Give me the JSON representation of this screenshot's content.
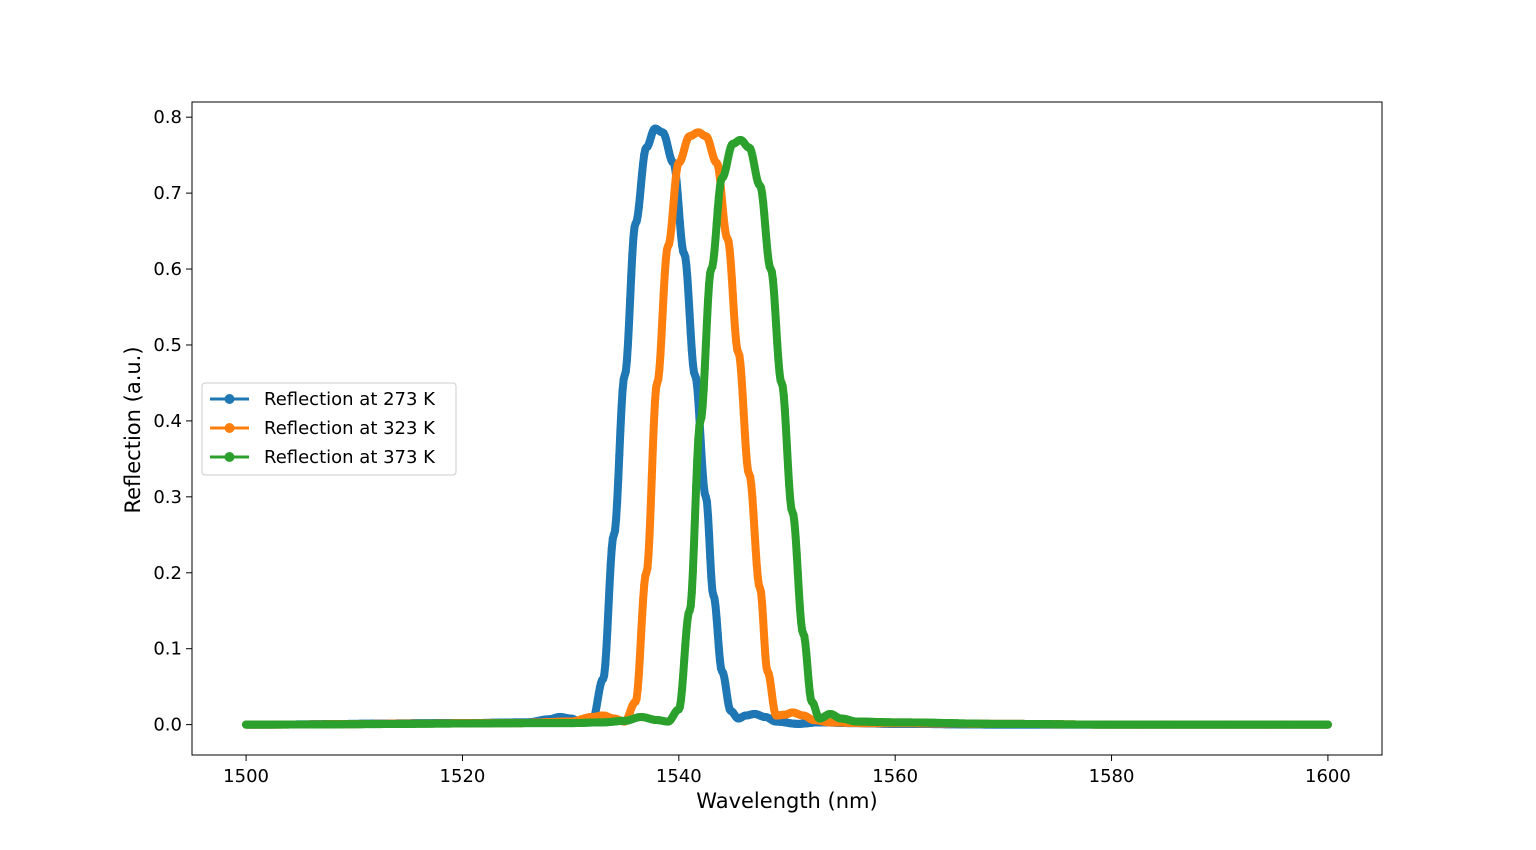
{
  "chart_data": {
    "type": "line",
    "title": "",
    "xlabel": "Wavelength (nm)",
    "ylabel": "Reflection (a.u.)",
    "xlim": [
      1495,
      1605
    ],
    "ylim": [
      -0.04,
      0.82
    ],
    "xticks": [
      1500,
      1520,
      1540,
      1560,
      1580,
      1600
    ],
    "yticks": [
      0.0,
      0.1,
      0.2,
      0.3,
      0.4,
      0.5,
      0.6,
      0.7,
      0.8
    ],
    "grid": false,
    "legend_position": "center-left",
    "markers": true,
    "series": [
      {
        "name": "Reflection at 273 K",
        "color": "#1f77b4",
        "x": [
          1500,
          1520,
          1526,
          1528,
          1529,
          1530,
          1531,
          1532,
          1533,
          1534,
          1535,
          1536,
          1537,
          1537.8,
          1538.5,
          1539.5,
          1540.5,
          1541.5,
          1542.5,
          1543.2,
          1544,
          1544.8,
          1545.5,
          1546.2,
          1547,
          1548,
          1549,
          1551,
          1553,
          1556,
          1560,
          1570,
          1580,
          1600
        ],
        "y": [
          0.0,
          0.002,
          0.003,
          0.007,
          0.01,
          0.008,
          0.003,
          0.005,
          0.06,
          0.25,
          0.46,
          0.66,
          0.76,
          0.785,
          0.78,
          0.74,
          0.62,
          0.46,
          0.3,
          0.17,
          0.07,
          0.018,
          0.008,
          0.012,
          0.014,
          0.01,
          0.004,
          0.001,
          0.003,
          0.002,
          0.001,
          0.0,
          0.0,
          0.0
        ]
      },
      {
        "name": "Reflection at 323 K",
        "color": "#ff7f0e",
        "x": [
          1500,
          1525,
          1530,
          1532,
          1533,
          1534,
          1535,
          1536,
          1537,
          1538,
          1539,
          1540,
          1541,
          1541.8,
          1542.5,
          1543.5,
          1544.5,
          1545.5,
          1546.5,
          1547.5,
          1548.2,
          1549,
          1549.8,
          1550.5,
          1551.5,
          1552.5,
          1554,
          1557,
          1560,
          1570,
          1580,
          1600
        ],
        "y": [
          0.0,
          0.002,
          0.004,
          0.01,
          0.012,
          0.008,
          0.004,
          0.03,
          0.2,
          0.45,
          0.63,
          0.74,
          0.775,
          0.78,
          0.775,
          0.74,
          0.64,
          0.49,
          0.33,
          0.18,
          0.07,
          0.012,
          0.013,
          0.016,
          0.012,
          0.006,
          0.003,
          0.002,
          0.002,
          0.001,
          0.0,
          0.0
        ]
      },
      {
        "name": "Reflection at 373 K",
        "color": "#2ca02c",
        "x": [
          1500,
          1530,
          1533,
          1535,
          1536.5,
          1538,
          1539,
          1540,
          1541,
          1542,
          1543,
          1544,
          1545,
          1545.7,
          1546.5,
          1547.5,
          1548.5,
          1549.5,
          1550.5,
          1551.5,
          1552.3,
          1553,
          1554,
          1555,
          1556.5,
          1560,
          1570,
          1580,
          1600
        ],
        "y": [
          0.0,
          0.002,
          0.003,
          0.005,
          0.01,
          0.006,
          0.004,
          0.02,
          0.15,
          0.4,
          0.6,
          0.72,
          0.765,
          0.77,
          0.76,
          0.71,
          0.6,
          0.45,
          0.28,
          0.12,
          0.03,
          0.008,
          0.014,
          0.008,
          0.004,
          0.003,
          0.001,
          0.0,
          0.0
        ]
      }
    ]
  }
}
